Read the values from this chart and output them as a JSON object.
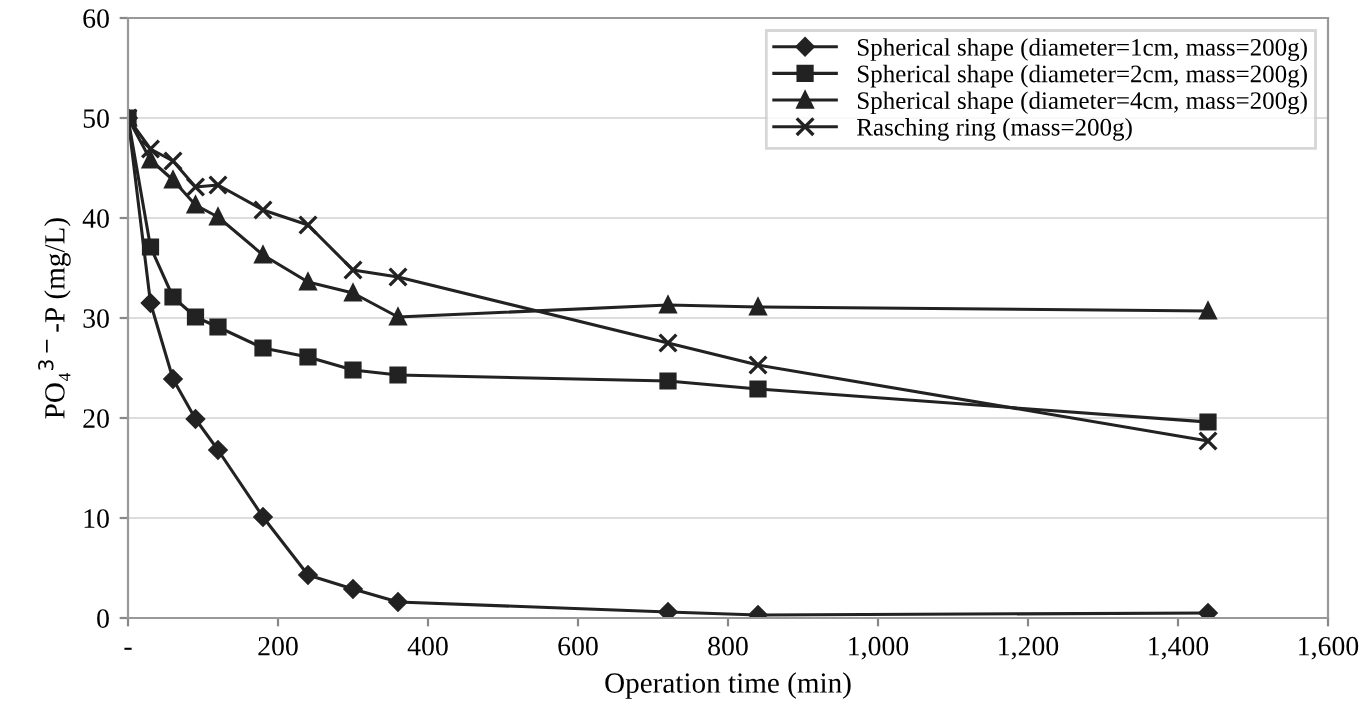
{
  "chart_data": {
    "type": "line",
    "xlabel": "Operation time (min)",
    "ylabel": "PO₄$^{3−}$-P (mg/L)",
    "xlim": [
      0,
      1600
    ],
    "xticks": [
      {
        "value": 0,
        "label": "-"
      },
      {
        "value": 200,
        "label": "200"
      },
      {
        "value": 400,
        "label": "400"
      },
      {
        "value": 600,
        "label": "600"
      },
      {
        "value": 800,
        "label": "800"
      },
      {
        "value": 1000,
        "label": "1,000"
      },
      {
        "value": 1200,
        "label": "1,200"
      },
      {
        "value": 1400,
        "label": "1,400"
      },
      {
        "value": 1600,
        "label": "1,600"
      }
    ],
    "ylim": [
      0,
      60
    ],
    "yticks": [
      0,
      10,
      20,
      30,
      40,
      50,
      60
    ],
    "grid": "y",
    "legend": "top right",
    "line_style": "solid",
    "series": [
      {
        "name": "Spherical shape (diameter=1cm, mass=200g)",
        "color": "#222222",
        "marker": "diamond",
        "x": [
          0,
          30,
          60,
          90,
          120,
          180,
          240,
          300,
          360,
          720,
          840,
          1440
        ],
        "values": [
          50,
          31.5,
          23.9,
          19.9,
          16.8,
          10.1,
          4.3,
          2.9,
          1.6,
          0.6,
          0.3,
          0.5
        ]
      },
      {
        "name": "Spherical shape (diameter=2cm, mass=200g)",
        "color": "#222222",
        "marker": "square",
        "x": [
          0,
          30,
          60,
          90,
          120,
          180,
          240,
          300,
          360,
          720,
          840,
          1440
        ],
        "values": [
          50,
          37.1,
          32.1,
          30.1,
          29.1,
          27.0,
          26.1,
          24.8,
          24.3,
          23.7,
          22.9,
          19.6
        ]
      },
      {
        "name": "Spherical shape (diameter=4cm, mass=200g)",
        "color": "#222222",
        "marker": "triangle",
        "x": [
          0,
          30,
          60,
          90,
          120,
          180,
          240,
          300,
          360,
          720,
          840,
          1440
        ],
        "values": [
          50,
          45.8,
          43.8,
          41.3,
          40.1,
          36.3,
          33.6,
          32.5,
          30.1,
          31.3,
          31.1,
          30.7
        ]
      },
      {
        "name": "Rasching ring (mass=200g)",
        "color": "#222222",
        "marker": "cross",
        "x": [
          0,
          30,
          60,
          90,
          120,
          180,
          240,
          300,
          360,
          720,
          840,
          1440
        ],
        "values": [
          50,
          46.9,
          45.7,
          43.1,
          43.3,
          40.8,
          39.3,
          34.8,
          34.1,
          27.5,
          25.3,
          17.7
        ]
      }
    ]
  }
}
